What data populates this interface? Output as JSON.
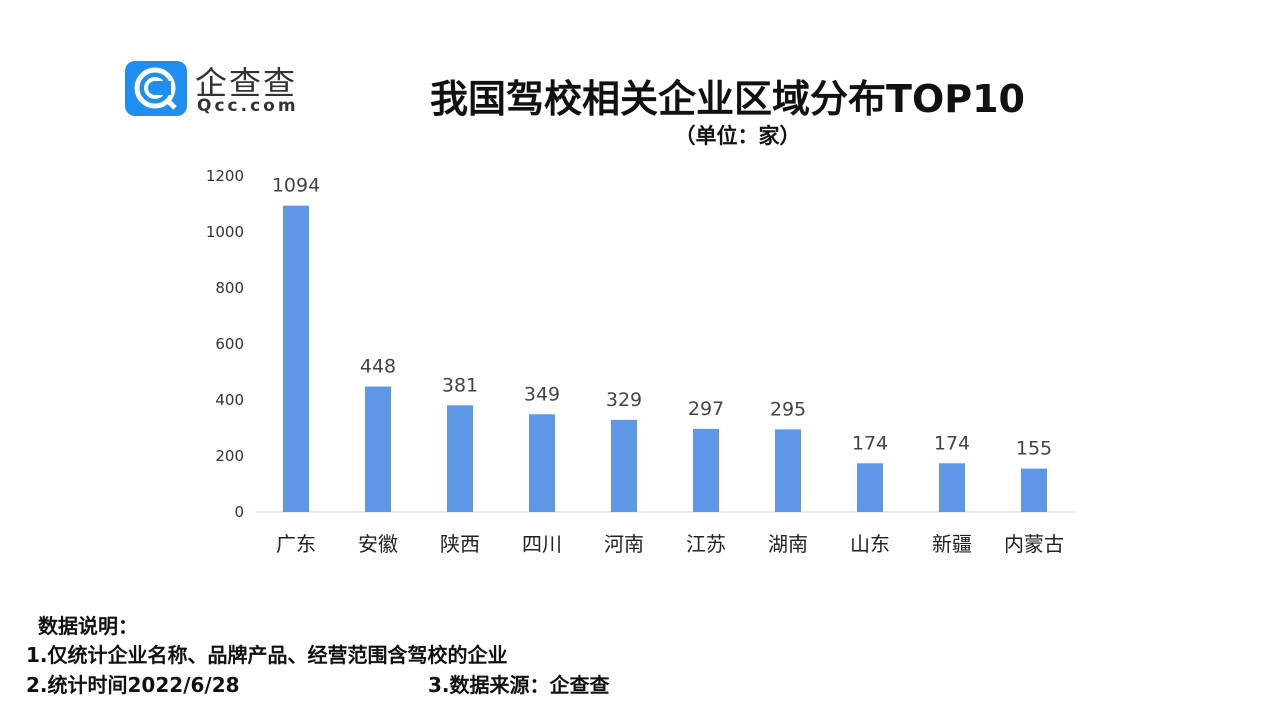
{
  "logo": {
    "cn": "企查查",
    "en": "Qcc.com"
  },
  "chart_data": {
    "type": "bar",
    "title": "我国驾校相关企业区域分布TOP10",
    "subtitle": "（单位：家）",
    "categories": [
      "广东",
      "安徽",
      "陕西",
      "四川",
      "河南",
      "江苏",
      "湖南",
      "山东",
      "新疆",
      "内蒙古"
    ],
    "values": [
      1094,
      448,
      381,
      349,
      329,
      297,
      295,
      174,
      174,
      155
    ],
    "yticks": [
      0,
      200,
      400,
      600,
      800,
      1000,
      1200
    ],
    "ylim": [
      0,
      1200
    ],
    "bar_color": "#5e97e6",
    "xlabel": "",
    "ylabel": "",
    "grid": false
  },
  "notes": {
    "heading": "数据说明：",
    "line1": "1.仅统计企业名称、品牌产品、经营范围含驾校的企业",
    "line2": "2.统计时间2022/6/28",
    "line3": "3.数据来源：企查查"
  }
}
